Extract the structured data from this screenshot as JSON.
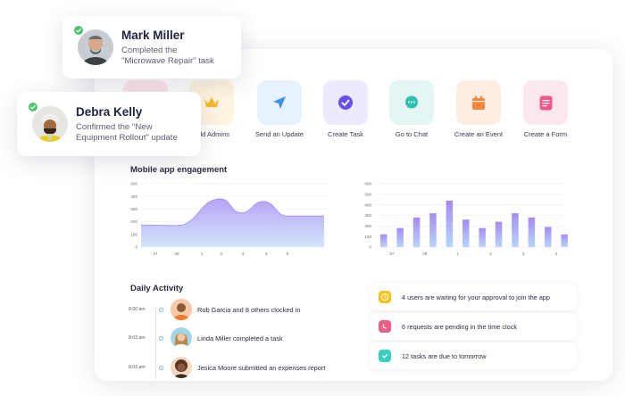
{
  "colors": {
    "accent": "#7a5cf5",
    "area_top": "#b9a7f6",
    "area_bottom": "#cfe4fb",
    "bar_top": "#a58af4",
    "bar_bottom": "#b7d6fb"
  },
  "notifications": [
    {
      "name": "Mark Miller",
      "line1": "Completed the",
      "line2": "\"Microwave Repair\" task",
      "icon": "check-icon"
    },
    {
      "name": "Debra Kelly",
      "line1": "Confirmed the \"New",
      "line2": "Equipment Rollout\" update",
      "icon": "check-icon"
    }
  ],
  "quick_actions": [
    {
      "label": "",
      "icon": "user-icon",
      "bg": "#fde8ea"
    },
    {
      "label": "Add Admins",
      "icon": "crown-icon",
      "bg": "#fff4df"
    },
    {
      "label": "Send an Update",
      "icon": "send-icon",
      "bg": "#e6f2fd"
    },
    {
      "label": "Create Task",
      "icon": "check-circle-icon",
      "bg": "#eee9fe"
    },
    {
      "label": "Go to Chat",
      "icon": "chat-icon",
      "bg": "#e2f7f4"
    },
    {
      "label": "Create an Event",
      "icon": "calendar-icon",
      "bg": "#fdeee3"
    },
    {
      "label": "Create a Form",
      "icon": "form-icon",
      "bg": "#fde7ef"
    }
  ],
  "engagement": {
    "title": "Mobile app engagement"
  },
  "chart_data": [
    {
      "type": "area",
      "x": [
        "27",
        "28",
        "1",
        "2",
        "3",
        "4",
        "5"
      ],
      "values": [
        175,
        170,
        380,
        270,
        360,
        245,
        245
      ],
      "y_ticks": [
        "0",
        "100",
        "200",
        "300",
        "400",
        "500"
      ],
      "ylim": [
        0,
        500
      ],
      "grid": true
    },
    {
      "type": "bar",
      "x_tick_labels": [
        "27",
        "28",
        "1",
        "2",
        "3",
        "4"
      ],
      "values": [
        120,
        180,
        280,
        320,
        440,
        260,
        180,
        240,
        320,
        280,
        190,
        120
      ],
      "y_ticks": [
        "0",
        "100",
        "200",
        "300",
        "400",
        "500",
        "600"
      ],
      "ylim": [
        0,
        600
      ],
      "grid": true
    }
  ],
  "activity": {
    "title": "Daily Activity",
    "items": [
      {
        "time": "8:00 am",
        "text": "Rob Garcia and 8 others clocked in"
      },
      {
        "time": "8:03 am",
        "text": "Linda Miller completed a task"
      },
      {
        "time": "8:03 am",
        "text": "Jesica Moore submitted an expenses report"
      }
    ]
  },
  "alerts": [
    {
      "text": "4 users are waiting for your approval to join the app",
      "icon": "clock-alert-icon",
      "color": "#f6c21a"
    },
    {
      "text": "6 requests are pending in the time clock",
      "icon": "clock-icon",
      "color": "#ef5c86"
    },
    {
      "text": "12 tasks are due to tomorrow",
      "icon": "check-icon",
      "color": "#38cfc0"
    }
  ]
}
